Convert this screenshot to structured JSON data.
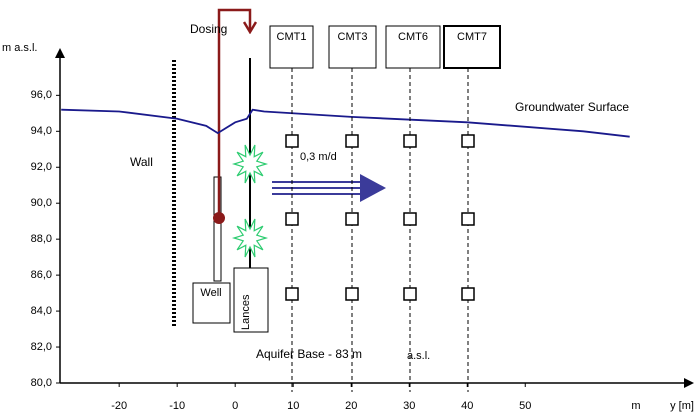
{
  "y_axis": {
    "label": "m a.s.l.",
    "ylim": [
      80,
      98.8
    ],
    "yticks": [
      {
        "value": 80,
        "label": "80,0"
      },
      {
        "value": 82,
        "label": "82,0"
      },
      {
        "value": 84,
        "label": "84,0"
      },
      {
        "value": 86,
        "label": "86,0"
      },
      {
        "value": 88,
        "label": "88,0"
      },
      {
        "value": 90,
        "label": "90,0"
      },
      {
        "value": 92,
        "label": "92,0"
      },
      {
        "value": 94,
        "label": "94,0"
      },
      {
        "value": 96,
        "label": "96,0"
      }
    ]
  },
  "x_axis": {
    "unit": "m",
    "label": "y [m]",
    "xlim": [
      -30.2,
      78.4
    ],
    "xticks": [
      -20,
      -10,
      0,
      10,
      20,
      30,
      40,
      50
    ]
  },
  "groundwater": {
    "label": "Groundwater Surface",
    "color": "#1a1a8c",
    "x": [
      -30,
      -20,
      -10,
      -5,
      -3,
      0,
      2,
      3,
      5,
      20,
      40,
      60,
      68
    ],
    "y": [
      95.2,
      95.1,
      94.7,
      94.3,
      93.9,
      94.5,
      94.7,
      95.2,
      95.1,
      94.8,
      94.5,
      94.0,
      93.7
    ]
  },
  "labels": {
    "dosing": "Dosing",
    "wall": "Wall",
    "well": "Well",
    "lances": "Lances",
    "flow": "0,3 m/d",
    "base": "Aquifer Base  - 83 m",
    "base_unit": "a.s.l."
  },
  "wells": [
    "CMT1",
    "CMT3",
    "CMT6",
    "CMT7"
  ]
}
